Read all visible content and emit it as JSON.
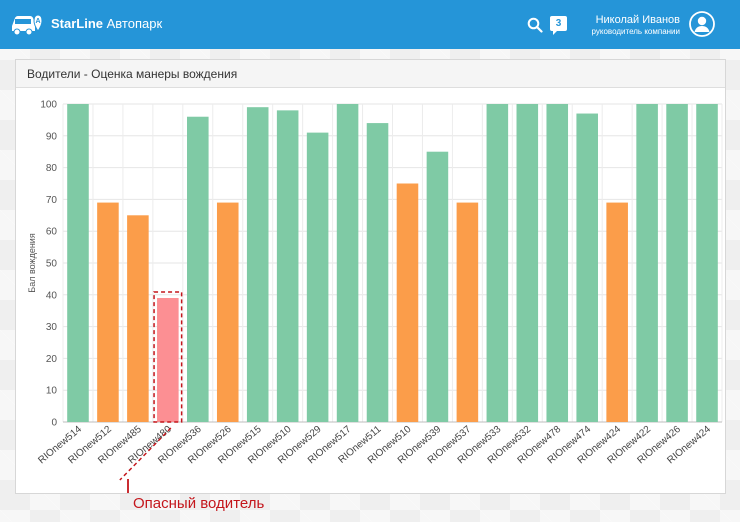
{
  "header": {
    "brand_bold": "StarLine",
    "brand_rest": "Автопарк",
    "notification_count": "3",
    "user_name": "Николай Иванов",
    "user_role": "руководитель компании",
    "icons": {
      "logo": "car-location-icon",
      "search": "search-icon",
      "notifications": "chat-bubble-icon",
      "avatar": "user-circle-icon"
    },
    "accent_color": "#2595d8"
  },
  "panel": {
    "title": "Водители - Оценка манеры вождения"
  },
  "annotation": {
    "label": "Опасный водитель",
    "color": "#c4161c"
  },
  "chart_data": {
    "type": "bar",
    "ylabel": "Бал вождения",
    "xlabel": "",
    "ylim": [
      0,
      100
    ],
    "yticks": [
      0,
      10,
      20,
      30,
      40,
      50,
      60,
      70,
      80,
      90,
      100
    ],
    "grid": true,
    "categories": [
      "RIOnew514",
      "RIOnew512",
      "RIOnew485",
      "RIOnew480",
      "RIOnew536",
      "RIOnew526",
      "RIOnew515",
      "RIOnew510",
      "RIOnew529",
      "RIOnew517",
      "RIOnew511",
      "RIOnew510",
      "RIOnew539",
      "RIOnew537",
      "RIOnew533",
      "RIOnew532",
      "RIOnew478",
      "RIOnew474",
      "RIOnew424",
      "RIOnew422",
      "RIOnew426",
      "RIOnew424"
    ],
    "values": [
      100,
      69,
      65,
      39,
      96,
      69,
      99,
      98,
      91,
      100,
      94,
      75,
      85,
      69,
      100,
      100,
      100,
      97,
      69,
      100,
      100,
      100
    ],
    "colors": {
      "good": "#7fcaa5",
      "medium": "#fb9d4a",
      "dangerous": "#fc8f93"
    },
    "highlighted_category_index": 3
  }
}
